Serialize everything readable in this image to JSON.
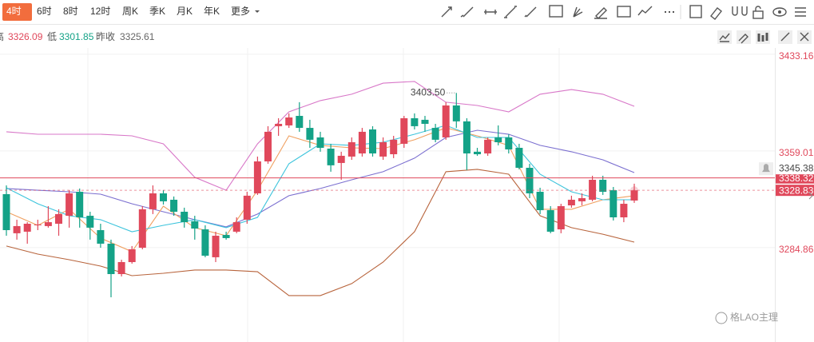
{
  "tabs": [
    "4时",
    "6时",
    "8时",
    "12时",
    "周K",
    "季K",
    "月K",
    "年K",
    "更多"
  ],
  "chart_data": {
    "type": "candlestick",
    "info": [
      {
        "label": "高",
        "value": 3326.09
      },
      {
        "label": "低",
        "value": 3301.85
      },
      {
        "label": "昨收",
        "value": 3325.61
      }
    ],
    "ylim": [
      3226,
      3438
    ],
    "yticks": [
      3433.16,
      3359.01,
      3284.86
    ],
    "grid": true,
    "up_color": "#e0485b",
    "down_color": "#14a287",
    "ohlc": [
      [
        3325.9,
        3332.6,
        3294.0,
        3298.3
      ],
      [
        3295.9,
        3306.3,
        3291.0,
        3301.4
      ],
      [
        3297.1,
        3304.4,
        3287.9,
        3303.2
      ],
      [
        3302.0,
        3306.3,
        3298.3,
        3302.6
      ],
      [
        3301.4,
        3316.7,
        3300.2,
        3304.4
      ],
      [
        3303.2,
        3314.3,
        3294.0,
        3310.6
      ],
      [
        3309.3,
        3329.0,
        3300.2,
        3326.5
      ],
      [
        3327.7,
        3330.2,
        3300.2,
        3308.1
      ],
      [
        3309.3,
        3312.4,
        3291.0,
        3300.2
      ],
      [
        3298.3,
        3303.2,
        3284.8,
        3287.9
      ],
      [
        3287.9,
        3291.0,
        3246.8,
        3264.6
      ],
      [
        3264.6,
        3275.6,
        3262.8,
        3273.8
      ],
      [
        3273.8,
        3286.1,
        3272.6,
        3283.6
      ],
      [
        3284.8,
        3316.7,
        3283.6,
        3314.3
      ],
      [
        3314.3,
        3332.6,
        3310.6,
        3326.5
      ],
      [
        3326.5,
        3329.0,
        3317.9,
        3320.4
      ],
      [
        3321.6,
        3324.1,
        3309.3,
        3312.4
      ],
      [
        3312.4,
        3315.5,
        3300.2,
        3304.4
      ],
      [
        3305.1,
        3309.3,
        3291.0,
        3299.5
      ],
      [
        3298.9,
        3302.0,
        3277.5,
        3278.7
      ],
      [
        3277.5,
        3297.1,
        3273.8,
        3294.0
      ],
      [
        3294.6,
        3297.1,
        3291.0,
        3292.2
      ],
      [
        3297.1,
        3308.1,
        3295.9,
        3304.4
      ],
      [
        3306.3,
        3327.7,
        3303.2,
        3324.7
      ],
      [
        3326.5,
        3354.7,
        3325.3,
        3351.0
      ],
      [
        3351.0,
        3378.0,
        3349.2,
        3373.7
      ],
      [
        3378.0,
        3384.1,
        3370.6,
        3379.8
      ],
      [
        3378.6,
        3387.8,
        3376.7,
        3384.7
      ],
      [
        3385.9,
        3396.4,
        3373.7,
        3376.7
      ],
      [
        3376.7,
        3382.9,
        3361.4,
        3367.6
      ],
      [
        3369.4,
        3373.7,
        3358.4,
        3361.4
      ],
      [
        3360.8,
        3364.5,
        3343.1,
        3348.0
      ],
      [
        3349.8,
        3358.4,
        3336.9,
        3355.3
      ],
      [
        3354.7,
        3369.4,
        3352.2,
        3365.7
      ],
      [
        3357.1,
        3376.7,
        3354.7,
        3373.7
      ],
      [
        3375.5,
        3378.0,
        3354.7,
        3357.1
      ],
      [
        3354.7,
        3369.4,
        3352.2,
        3365.7
      ],
      [
        3356.5,
        3370.6,
        3353.5,
        3367.6
      ],
      [
        3364.5,
        3385.9,
        3361.4,
        3384.1
      ],
      [
        3384.1,
        3387.8,
        3375.5,
        3378.0
      ],
      [
        3382.9,
        3385.9,
        3373.7,
        3379.8
      ],
      [
        3376.7,
        3379.8,
        3365.7,
        3367.6
      ],
      [
        3369.4,
        3396.4,
        3367.6,
        3393.9
      ],
      [
        3393.9,
        3403.5,
        3376.7,
        3381.7
      ],
      [
        3381.7,
        3384.1,
        3344.3,
        3357.1
      ],
      [
        3358.4,
        3361.4,
        3355.3,
        3356.5
      ],
      [
        3357.1,
        3369.4,
        3355.3,
        3367.6
      ],
      [
        3369.4,
        3378.6,
        3363.3,
        3365.7
      ],
      [
        3369.4,
        3371.8,
        3357.1,
        3360.2
      ],
      [
        3361.4,
        3364.5,
        3344.9,
        3346.1
      ],
      [
        3346.1,
        3349.2,
        3322.8,
        3326.5
      ],
      [
        3327.7,
        3330.8,
        3310.6,
        3313.6
      ],
      [
        3313.6,
        3316.7,
        3295.9,
        3297.1
      ],
      [
        3298.9,
        3318.5,
        3295.9,
        3316.7
      ],
      [
        3317.3,
        3324.7,
        3315.5,
        3321.6
      ],
      [
        3320.4,
        3326.5,
        3317.3,
        3322.8
      ],
      [
        3321.6,
        3340.0,
        3320.4,
        3336.9
      ],
      [
        3336.9,
        3340.0,
        3325.3,
        3327.7
      ],
      [
        3328.9,
        3331.4,
        3305.7,
        3308.1
      ],
      [
        3308.1,
        3321.6,
        3304.4,
        3318.5
      ],
      [
        3321.0,
        3333.9,
        3319.2,
        3328.83
      ]
    ],
    "high_label": {
      "value": 3403.5,
      "label": "3403.50"
    },
    "lines": [
      {
        "color": "#d877c8",
        "x": [
          0,
          3,
          6,
          9,
          12,
          15,
          18,
          21,
          24,
          27,
          30,
          33,
          36,
          39,
          42,
          45,
          48,
          51,
          54,
          57,
          60
        ],
        "values": [
          3373.7,
          3371.8,
          3371.8,
          3371.8,
          3370.6,
          3364.5,
          3338.8,
          3328.9,
          3364.5,
          3389.0,
          3397.6,
          3402.5,
          3411.0,
          3412.3,
          3396.4,
          3393.9,
          3389.0,
          3402.5,
          3406.1,
          3402.5,
          3393.3
        ]
      },
      {
        "color": "#7b6fd0",
        "x": [
          0,
          3,
          6,
          9,
          12,
          15,
          18,
          21,
          24,
          27,
          30,
          33,
          36,
          39,
          42,
          45,
          48,
          51,
          54,
          57,
          60
        ],
        "values": [
          3330.2,
          3328.9,
          3327.7,
          3325.9,
          3318.5,
          3312.4,
          3306.3,
          3300.8,
          3310.6,
          3324.7,
          3330.2,
          3336.9,
          3343.1,
          3353.5,
          3369.4,
          3374.9,
          3371.8,
          3363.3,
          3358.4,
          3352.2,
          3342.4
        ]
      },
      {
        "color": "#b8643c",
        "x": [
          0,
          3,
          6,
          9,
          12,
          15,
          18,
          21,
          24,
          27,
          30,
          33,
          36,
          39,
          42,
          45,
          48,
          51,
          54,
          57,
          60
        ],
        "values": [
          3286.1,
          3279.9,
          3275.6,
          3270.7,
          3263.4,
          3265.2,
          3267.7,
          3267.7,
          3266.4,
          3248.1,
          3248.1,
          3257.3,
          3273.8,
          3297.1,
          3343.1,
          3344.9,
          3341.2,
          3309.3,
          3300.2,
          3295.2,
          3289.1
        ]
      },
      {
        "color": "#f0a060",
        "x": [
          0,
          3,
          6,
          9,
          12,
          15,
          18,
          21,
          24,
          27,
          30,
          33,
          36,
          39,
          42,
          45,
          48,
          51,
          54,
          57,
          60
        ],
        "values": [
          3312.4,
          3302.0,
          3314.3,
          3292.2,
          3281.8,
          3316.7,
          3300.2,
          3294.0,
          3328.9,
          3370.6,
          3363.3,
          3361.4,
          3360.8,
          3367.6,
          3376.7,
          3370.6,
          3363.3,
          3314.3,
          3314.3,
          3321.6,
          3324.7
        ]
      },
      {
        "color": "#3cc4dc",
        "x": [
          0,
          3,
          6,
          9,
          12,
          15,
          18,
          21,
          24,
          27,
          30,
          33,
          36,
          39,
          42,
          45,
          48,
          51,
          54,
          57,
          60
        ],
        "values": [
          3330.8,
          3318.5,
          3309.3,
          3306.3,
          3297.1,
          3302.0,
          3306.3,
          3300.2,
          3308.1,
          3349.2,
          3364.5,
          3363.3,
          3365.7,
          3371.8,
          3378.6,
          3369.4,
          3369.4,
          3341.2,
          3327.7,
          3321.6,
          3321.6
        ]
      }
    ],
    "alert_price": 3345.38,
    "price_lines": [
      {
        "value": 3338.32,
        "color": "#e0485b",
        "style": "solid"
      },
      {
        "value": 3328.83,
        "color": "#e0485b",
        "style": "dashed"
      }
    ],
    "watermark": "格LAO主理"
  }
}
